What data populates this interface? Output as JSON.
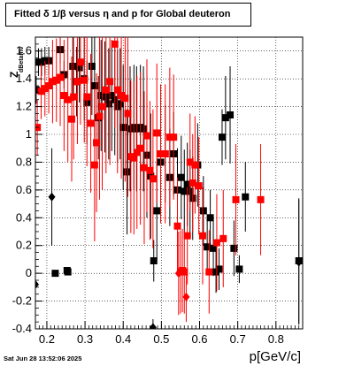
{
  "title": "Fitted δ 1/β versus η and p for Global deuteron",
  "timestamp": "Sat Jun 28 13:52:06 2025",
  "chart_data": {
    "type": "scatter",
    "title": "Fitted δ 1/β versus η and p for Global deuteron",
    "xlabel": "p[GeV/c]",
    "ylabel": "Z",
    "ylabel_sub": "dBetaInv",
    "xlim": [
      0.17,
      0.87
    ],
    "ylim": [
      -0.4,
      1.7
    ],
    "grid": true,
    "xticks": [
      "0.2",
      "0.3",
      "0.4",
      "0.5",
      "0.6",
      "0.7",
      "0.8"
    ],
    "yticks": [
      "-0.4",
      "-0.2",
      "0",
      "0.2",
      "0.4",
      "0.6",
      "0.8",
      "1",
      "1.2",
      "1.4",
      "1.6"
    ],
    "series": [
      {
        "color": "#000000",
        "points": [
          [
            0.172,
            1.32,
            0.1
          ],
          [
            0.178,
            1.52,
            0.1
          ],
          [
            0.186,
            1.52,
            0.1
          ],
          [
            0.195,
            1.53,
            0.1
          ],
          [
            0.205,
            1.53,
            0.1
          ],
          [
            0.222,
            0.0,
            0.02
          ],
          [
            0.235,
            1.61,
            0.1
          ],
          [
            0.245,
            1.43,
            0.1
          ],
          [
            0.253,
            0.02,
            0.02
          ],
          [
            0.255,
            0.01,
            0.02
          ],
          [
            0.268,
            1.49,
            0.25
          ],
          [
            0.278,
            1.38,
            0.25
          ],
          [
            0.285,
            1.48,
            0.25
          ],
          [
            0.298,
            1.4,
            0.3
          ],
          [
            0.305,
            1.23,
            0.3
          ],
          [
            0.318,
            1.49,
            0.35
          ],
          [
            0.325,
            1.35,
            0.4
          ],
          [
            0.335,
            1.12,
            0.3
          ],
          [
            0.342,
            1.28,
            0.4
          ],
          [
            0.352,
            1.27,
            0.4
          ],
          [
            0.362,
            1.22,
            0.4
          ],
          [
            0.37,
            1.28,
            0.4
          ],
          [
            0.378,
            1.25,
            0.4
          ],
          [
            0.385,
            1.2,
            0.4
          ],
          [
            0.392,
            1.22,
            0.4
          ],
          [
            0.4,
            1.05,
            0.45
          ],
          [
            0.41,
            0.73,
            0.45
          ],
          [
            0.418,
            1.04,
            0.45
          ],
          [
            0.428,
            1.05,
            0.45
          ],
          [
            0.435,
            1.04,
            0.45
          ],
          [
            0.445,
            1.05,
            0.45
          ],
          [
            0.453,
            1.04,
            0.45
          ],
          [
            0.462,
            0.85,
            0.45
          ],
          [
            0.472,
            0.7,
            0.45
          ],
          [
            0.48,
            0.09,
            0.15
          ],
          [
            0.488,
            0.45,
            0.35
          ],
          [
            0.498,
            0.8,
            0.4
          ],
          [
            0.51,
            0.86,
            0.35
          ],
          [
            0.522,
            0.69,
            0.35
          ],
          [
            0.532,
            0.86,
            0.3
          ],
          [
            0.542,
            0.6,
            0.3
          ],
          [
            0.552,
            0.69,
            0.3
          ],
          [
            0.56,
            0.59,
            0.3
          ],
          [
            0.568,
            0.64,
            0.3
          ],
          [
            0.575,
            0.59,
            0.3
          ],
          [
            0.582,
            0.54,
            0.3
          ],
          [
            0.595,
            0.78,
            0.3
          ],
          [
            0.61,
            0.45,
            0.25
          ],
          [
            0.62,
            0.19,
            0.2
          ],
          [
            0.628,
            0.4,
            0.2
          ],
          [
            0.636,
            0.18,
            0.2
          ],
          [
            0.643,
            0.01,
            0.15
          ],
          [
            0.651,
            0.03,
            0.15
          ],
          [
            0.659,
            0.98,
            0.2
          ],
          [
            0.668,
            1.12,
            0.3
          ],
          [
            0.68,
            1.14,
            0.35
          ],
          [
            0.69,
            0.18,
            0.2
          ],
          [
            0.704,
            0.03,
            0.1
          ],
          [
            0.72,
            0.55,
            0.25
          ],
          [
            0.86,
            0.09,
            0.45
          ]
        ]
      },
      {
        "color": "#ff0000",
        "points": [
          [
            0.175,
            1.05,
            0.2
          ],
          [
            0.185,
            1.31,
            0.2
          ],
          [
            0.195,
            1.33,
            0.2
          ],
          [
            0.205,
            1.35,
            0.2
          ],
          [
            0.215,
            1.38,
            0.3
          ],
          [
            0.225,
            1.39,
            0.3
          ],
          [
            0.235,
            1.41,
            0.35
          ],
          [
            0.245,
            1.28,
            0.4
          ],
          [
            0.255,
            1.25,
            0.45
          ],
          [
            0.265,
            1.11,
            0.45
          ],
          [
            0.27,
            1.27,
            0.45
          ],
          [
            0.28,
            1.38,
            0.45
          ],
          [
            0.288,
            1.52,
            0.45
          ],
          [
            0.298,
            1.39,
            0.45
          ],
          [
            0.305,
            1.27,
            0.5
          ],
          [
            0.315,
            1.08,
            0.5
          ],
          [
            0.325,
            0.78,
            0.55
          ],
          [
            0.33,
            0.94,
            0.5
          ],
          [
            0.338,
            1.13,
            0.6
          ],
          [
            0.345,
            1.2,
            0.6
          ],
          [
            0.355,
            1.32,
            0.6
          ],
          [
            0.365,
            1.38,
            0.6
          ],
          [
            0.378,
            1.65,
            0.6
          ],
          [
            0.385,
            1.32,
            0.6
          ],
          [
            0.395,
            1.28,
            0.6
          ],
          [
            0.405,
            1.26,
            0.6
          ],
          [
            0.412,
            1.15,
            0.6
          ],
          [
            0.42,
            0.84,
            0.55
          ],
          [
            0.428,
            0.83,
            0.55
          ],
          [
            0.436,
            0.87,
            0.55
          ],
          [
            0.445,
            0.9,
            0.55
          ],
          [
            0.455,
            0.76,
            0.55
          ],
          [
            0.462,
            0.99,
            0.55
          ],
          [
            0.47,
            0.74,
            0.5
          ],
          [
            0.478,
            0.68,
            0.5
          ],
          [
            0.488,
            1.01,
            0.5
          ],
          [
            0.498,
            0.86,
            0.5
          ],
          [
            0.51,
            0.86,
            0.5
          ],
          [
            0.522,
            0.98,
            0.5
          ],
          [
            0.532,
            0.98,
            0.45
          ],
          [
            0.542,
            0.34,
            0.35
          ],
          [
            0.55,
            0.01,
            0.3
          ],
          [
            0.555,
            0.02,
            0.3
          ],
          [
            0.56,
            0.01,
            0.3
          ],
          [
            0.568,
            0.27,
            0.35
          ],
          [
            0.575,
            0.8,
            0.35
          ],
          [
            0.582,
            0.65,
            0.35
          ],
          [
            0.588,
            0.78,
            0.35
          ],
          [
            0.598,
            0.63,
            0.35
          ],
          [
            0.608,
            0.27,
            0.35
          ],
          [
            0.625,
            0.01,
            0.3
          ],
          [
            0.645,
            0.22,
            0.35
          ],
          [
            0.662,
            0.25,
            0.35
          ],
          [
            0.695,
            0.53,
            0.4
          ],
          [
            0.76,
            0.53,
            0.4
          ]
        ]
      }
    ],
    "diamonds": [
      {
        "color": "#000000",
        "points": [
          [
            0.17,
            -0.08,
            0.12
          ],
          [
            0.213,
            0.55,
            0.35
          ],
          [
            0.478,
            -0.39,
            0.06
          ],
          [
            0.86,
            0.08,
            0.45
          ]
        ]
      },
      {
        "color": "#ff0000",
        "points": [
          [
            0.545,
            0.0,
            0.3
          ],
          [
            0.565,
            -0.17,
            0.18
          ]
        ]
      }
    ]
  }
}
